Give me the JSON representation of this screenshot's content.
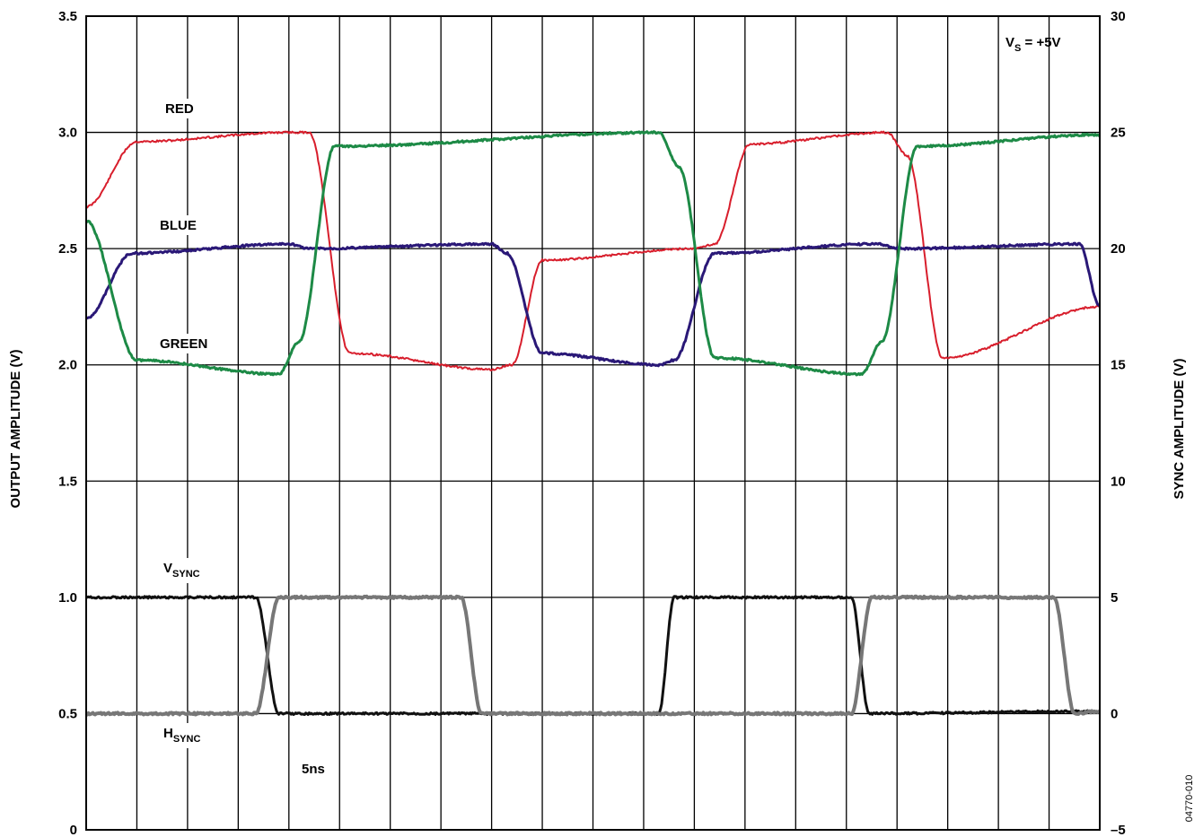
{
  "chart_data": {
    "type": "line",
    "title": "",
    "ylabel": "OUTPUT AMPLITUDE (V)",
    "y2label": "SYNC AMPLITUDE (V)",
    "ylim": [
      0,
      3.5
    ],
    "y2lim": [
      -5,
      30
    ],
    "yticks": [
      "0",
      "0.5",
      "1.0",
      "1.5",
      "2.0",
      "2.5",
      "3.0",
      "3.5"
    ],
    "y2ticks": [
      "–5",
      "0",
      "5",
      "10",
      "15",
      "20",
      "25",
      "30"
    ],
    "x_divisions": 20,
    "x_unit": "ns",
    "time_per_division_label": "5ns",
    "grid": true,
    "figure_id": "04770-010",
    "annotations": {
      "supply": {
        "main": "V",
        "sub": "S",
        "tail": " = +5V"
      },
      "red": "RED",
      "blue": "BLUE",
      "green": "GREEN",
      "vsync": {
        "main": "V",
        "sub": "SYNC"
      },
      "hsync": {
        "main": "H",
        "sub": "SYNC"
      }
    },
    "series": [
      {
        "name": "RED",
        "color": "#d81e2c",
        "stroke_width": 2,
        "x": [
          0,
          1,
          4,
          4.4,
          5.2,
          8,
          8.4,
          9,
          12,
          12.4,
          13.1,
          15.8,
          16.2,
          16.9,
          20
        ],
        "y": [
          2.68,
          2.96,
          3.0,
          3.0,
          2.05,
          1.98,
          2.0,
          2.45,
          2.5,
          2.52,
          2.95,
          3.0,
          2.9,
          2.03,
          2.25
        ]
      },
      {
        "name": "BLUE",
        "color": "#2a1877",
        "stroke_width": 3,
        "x": [
          0,
          0.9,
          4,
          4.4,
          8,
          8.3,
          9,
          11.3,
          11.6,
          12.4,
          15.6,
          16.1,
          19.6,
          20
        ],
        "y": [
          2.2,
          2.48,
          2.52,
          2.5,
          2.52,
          2.48,
          2.05,
          2.0,
          2.02,
          2.48,
          2.52,
          2.5,
          2.52,
          2.25
        ]
      },
      {
        "name": "GREEN",
        "color": "#1d8a46",
        "stroke_width": 3,
        "x": [
          0,
          1,
          3.8,
          4.2,
          4.9,
          11.3,
          11.7,
          12.4,
          15.3,
          15.7,
          16.4,
          20
        ],
        "y": [
          2.62,
          2.02,
          1.96,
          2.1,
          2.94,
          3.0,
          2.85,
          2.03,
          1.96,
          2.1,
          2.94,
          2.99
        ]
      },
      {
        "name": "VSYNC",
        "color": "#111111",
        "stroke_width": 3,
        "x": [
          0,
          3.35,
          3.8,
          11.3,
          11.6,
          15.1,
          15.45,
          20
        ],
        "y": [
          5.0,
          5.0,
          0.0,
          0.0,
          5.0,
          5.0,
          0.0,
          0.1
        ]
      },
      {
        "name": "HSYNC",
        "color": "#777777",
        "stroke_width": 4,
        "x": [
          0,
          3.35,
          3.8,
          7.4,
          7.8,
          15.1,
          15.5,
          19.1,
          19.5,
          20
        ],
        "y": [
          0.0,
          0.0,
          5.0,
          5.0,
          0.0,
          0.0,
          5.0,
          5.0,
          0.0,
          0.1
        ]
      }
    ]
  }
}
